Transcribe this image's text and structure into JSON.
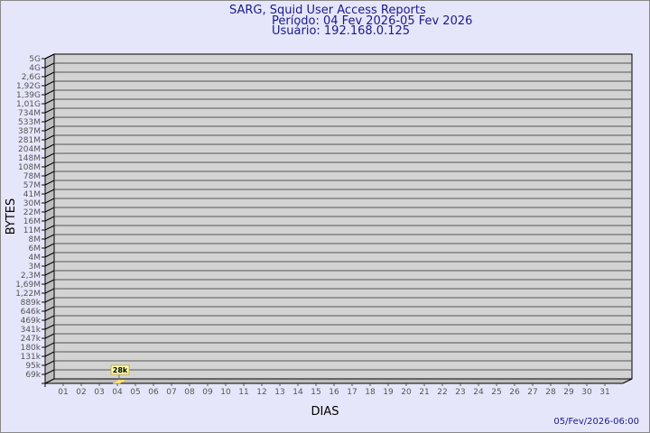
{
  "chart_data": {
    "type": "bar",
    "title": "SARG, Squid User Access Reports",
    "subtitle_period": "Período: 04 Fev 2026-05 Fev 2026",
    "subtitle_user": "Usuário: 192.168.0.125",
    "xlabel": "DIAS",
    "ylabel": "BYTES",
    "y_scale": "log",
    "grid": true,
    "y_tick_labels": [
      "5G",
      "4G",
      "2,6G",
      "1,92G",
      "1,39G",
      "1,01G",
      "734M",
      "533M",
      "387M",
      "281M",
      "204M",
      "148M",
      "108M",
      "78M",
      "57M",
      "41M",
      "30M",
      "22M",
      "16M",
      "11M",
      "8M",
      "6M",
      "4M",
      "3M",
      "2,3M",
      "1,69M",
      "1,22M",
      "889k",
      "646k",
      "469k",
      "341k",
      "247k",
      "180k",
      "131k",
      "95k",
      "69k"
    ],
    "categories": [
      "01",
      "02",
      "03",
      "04",
      "05",
      "06",
      "07",
      "08",
      "09",
      "10",
      "11",
      "12",
      "13",
      "14",
      "15",
      "16",
      "17",
      "18",
      "19",
      "20",
      "21",
      "22",
      "23",
      "24",
      "25",
      "26",
      "27",
      "28",
      "29",
      "30",
      "31"
    ],
    "bars": [
      {
        "day": "04",
        "value": 28000,
        "label": "28k"
      }
    ],
    "colors": {
      "background": "#e6e6fa",
      "plot": "#d3d3d3",
      "bar": "#ffe680",
      "title": "#1a1a8c"
    }
  },
  "footer": {
    "timestamp": "05/Fev/2026-06:00"
  }
}
